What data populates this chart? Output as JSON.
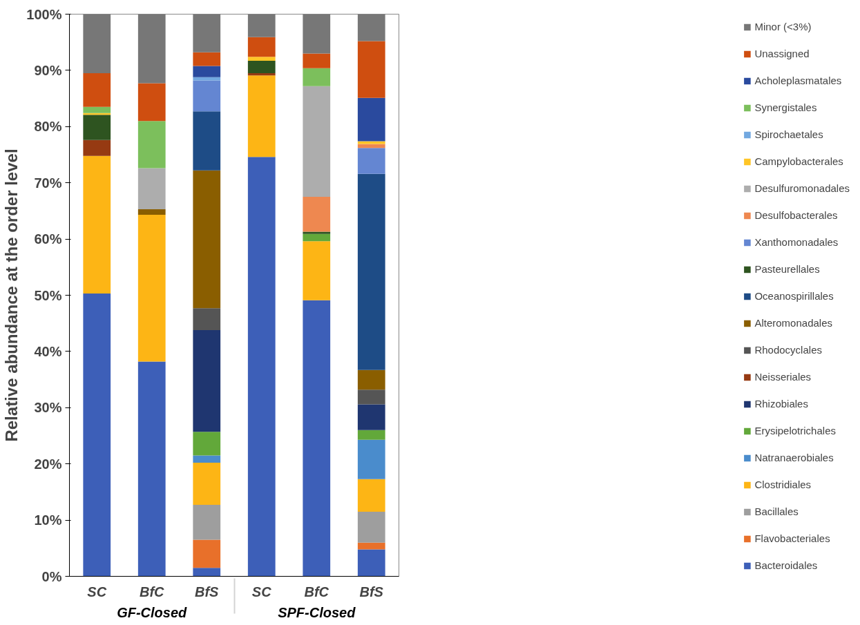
{
  "chart_data": {
    "type": "bar",
    "stacked": true,
    "ylabel": "Relative abundance at the order level",
    "categories": [
      "SC",
      "BfC",
      "BfS",
      "SC",
      "BfC",
      "BfS"
    ],
    "annotations": [
      "GF-Closed",
      "SPF-Closed"
    ],
    "ylim": [
      0,
      100
    ],
    "yticks": [
      {
        "value": 0,
        "label": "0%"
      },
      {
        "value": 10,
        "label": "10%"
      },
      {
        "value": 20,
        "label": "20%"
      },
      {
        "value": 30,
        "label": "30%"
      },
      {
        "value": 40,
        "label": "40%"
      },
      {
        "value": 50,
        "label": "50%"
      },
      {
        "value": 60,
        "label": "60%"
      },
      {
        "value": 70,
        "label": "70%"
      },
      {
        "value": 80,
        "label": "80%"
      },
      {
        "value": 90,
        "label": "90%"
      },
      {
        "value": 100,
        "label": "100%"
      }
    ],
    "grid": false,
    "legend": "right",
    "series": [
      {
        "name": "Bacteroidales",
        "color": "#3d5fb8",
        "values": [
          50.3,
          38.2,
          1.5,
          74.6,
          49.1,
          4.8
        ]
      },
      {
        "name": "Flavobacteriales",
        "color": "#e8702a",
        "values": [
          null,
          null,
          5.0,
          null,
          null,
          1.2
        ]
      },
      {
        "name": "Bacillales",
        "color": "#9e9e9e",
        "values": [
          null,
          null,
          6.2,
          null,
          null,
          5.5
        ]
      },
      {
        "name": "Clostridiales",
        "color": "#fdb515",
        "values": [
          24.5,
          26.1,
          7.5,
          14.5,
          10.5,
          5.8
        ]
      },
      {
        "name": "Natranaerobiales",
        "color": "#4a8ccc",
        "values": [
          null,
          null,
          1.3,
          null,
          null,
          7.0
        ]
      },
      {
        "name": "Erysipelotrichales",
        "color": "#62a83a",
        "values": [
          null,
          null,
          4.2,
          null,
          1.3,
          1.7
        ]
      },
      {
        "name": "Rhizobiales",
        "color": "#1f3670",
        "values": [
          null,
          null,
          18.1,
          null,
          null,
          4.6
        ]
      },
      {
        "name": "Neisseriales",
        "color": "#963a12",
        "values": [
          2.8,
          null,
          null,
          0.4,
          null,
          null
        ]
      },
      {
        "name": "Rhodocyclales",
        "color": "#555555",
        "values": [
          null,
          null,
          3.9,
          null,
          null,
          2.6
        ]
      },
      {
        "name": "Alteromonadales",
        "color": "#8a5e00",
        "values": [
          null,
          1.0,
          24.5,
          null,
          null,
          3.5
        ]
      },
      {
        "name": "Oceanospirillales",
        "color": "#1e4c86",
        "values": [
          null,
          null,
          10.5,
          null,
          null,
          34.9
        ]
      },
      {
        "name": "Pasteurellales",
        "color": "#2e5420",
        "values": [
          4.5,
          null,
          null,
          2.2,
          0.4,
          null
        ]
      },
      {
        "name": "Xanthomonadales",
        "color": "#6486d2",
        "values": [
          null,
          null,
          5.5,
          null,
          null,
          4.6
        ]
      },
      {
        "name": "Desulfobacterales",
        "color": "#ee8850",
        "values": [
          null,
          null,
          null,
          null,
          6.2,
          0.7
        ]
      },
      {
        "name": "Desulfuromonadales",
        "color": "#adadad",
        "values": [
          null,
          7.3,
          null,
          null,
          19.7,
          null
        ]
      },
      {
        "name": "Campylobacterales",
        "color": "#ffc526",
        "values": [
          0.3,
          null,
          null,
          0.7,
          null,
          0.5
        ]
      },
      {
        "name": "Spirochaetales",
        "color": "#72a8e0",
        "values": [
          null,
          null,
          0.6,
          null,
          null,
          null
        ]
      },
      {
        "name": "Synergistales",
        "color": "#7cbf5c",
        "values": [
          1.1,
          8.4,
          null,
          null,
          3.2,
          null
        ]
      },
      {
        "name": "Acholeplasmatales",
        "color": "#2a4a9e",
        "values": [
          null,
          null,
          2.0,
          null,
          null,
          7.7
        ]
      },
      {
        "name": "Unassigned",
        "color": "#cf4e10",
        "values": [
          6.0,
          6.7,
          2.4,
          3.5,
          2.6,
          10.1
        ]
      },
      {
        "name": "Minor (<3%)",
        "color": "#777777",
        "values": [
          10.5,
          12.3,
          6.8,
          4.1,
          7.0,
          4.8
        ]
      }
    ]
  }
}
